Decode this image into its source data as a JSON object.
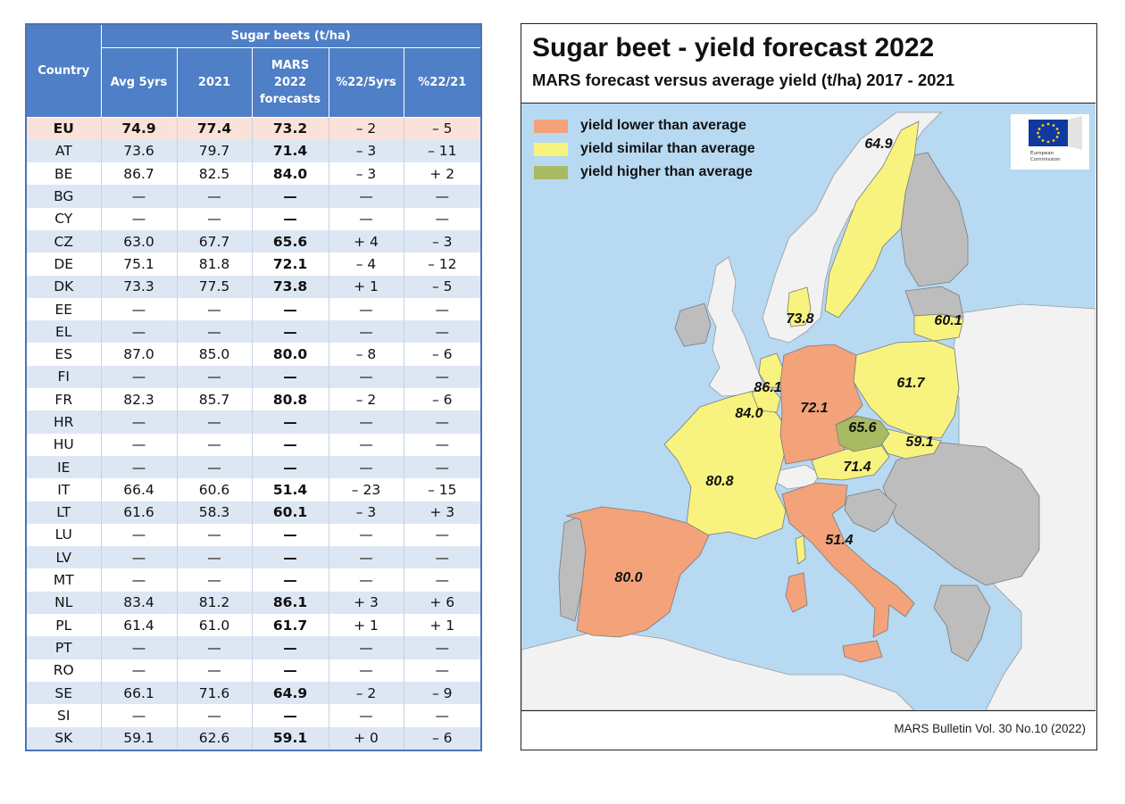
{
  "table": {
    "group_header": "Sugar beets (t/ha)",
    "col_country": "Country",
    "columns": [
      "Avg 5yrs",
      "2021",
      "MARS\n2022\nforecasts",
      "%22/5yrs",
      "%22/21"
    ],
    "rows": [
      {
        "code": "EU",
        "avg": "74.9",
        "y2021": "77.4",
        "fc": "73.2",
        "c5": "– 2",
        "c21": "– 5"
      },
      {
        "code": "AT",
        "avg": "73.6",
        "y2021": "79.7",
        "fc": "71.4",
        "c5": "– 3",
        "c21": "– 11"
      },
      {
        "code": "BE",
        "avg": "86.7",
        "y2021": "82.5",
        "fc": "84.0",
        "c5": "– 3",
        "c21": "+ 2"
      },
      {
        "code": "BG",
        "avg": "—",
        "y2021": "—",
        "fc": "—",
        "c5": "—",
        "c21": "—"
      },
      {
        "code": "CY",
        "avg": "—",
        "y2021": "—",
        "fc": "—",
        "c5": "—",
        "c21": "—"
      },
      {
        "code": "CZ",
        "avg": "63.0",
        "y2021": "67.7",
        "fc": "65.6",
        "c5": "+ 4",
        "c21": "– 3"
      },
      {
        "code": "DE",
        "avg": "75.1",
        "y2021": "81.8",
        "fc": "72.1",
        "c5": "– 4",
        "c21": "– 12"
      },
      {
        "code": "DK",
        "avg": "73.3",
        "y2021": "77.5",
        "fc": "73.8",
        "c5": "+ 1",
        "c21": "– 5"
      },
      {
        "code": "EE",
        "avg": "—",
        "y2021": "—",
        "fc": "—",
        "c5": "—",
        "c21": "—"
      },
      {
        "code": "EL",
        "avg": "—",
        "y2021": "—",
        "fc": "—",
        "c5": "—",
        "c21": "—"
      },
      {
        "code": "ES",
        "avg": "87.0",
        "y2021": "85.0",
        "fc": "80.0",
        "c5": "– 8",
        "c21": "– 6"
      },
      {
        "code": "FI",
        "avg": "—",
        "y2021": "—",
        "fc": "—",
        "c5": "—",
        "c21": "—"
      },
      {
        "code": "FR",
        "avg": "82.3",
        "y2021": "85.7",
        "fc": "80.8",
        "c5": "– 2",
        "c21": "– 6"
      },
      {
        "code": "HR",
        "avg": "—",
        "y2021": "—",
        "fc": "—",
        "c5": "—",
        "c21": "—"
      },
      {
        "code": "HU",
        "avg": "—",
        "y2021": "—",
        "fc": "—",
        "c5": "—",
        "c21": "—"
      },
      {
        "code": "IE",
        "avg": "—",
        "y2021": "—",
        "fc": "—",
        "c5": "—",
        "c21": "—"
      },
      {
        "code": "IT",
        "avg": "66.4",
        "y2021": "60.6",
        "fc": "51.4",
        "c5": "– 23",
        "c21": "– 15"
      },
      {
        "code": "LT",
        "avg": "61.6",
        "y2021": "58.3",
        "fc": "60.1",
        "c5": "– 3",
        "c21": "+ 3"
      },
      {
        "code": "LU",
        "avg": "—",
        "y2021": "—",
        "fc": "—",
        "c5": "—",
        "c21": "—"
      },
      {
        "code": "LV",
        "avg": "—",
        "y2021": "—",
        "fc": "—",
        "c5": "—",
        "c21": "—"
      },
      {
        "code": "MT",
        "avg": "—",
        "y2021": "—",
        "fc": "—",
        "c5": "—",
        "c21": "—"
      },
      {
        "code": "NL",
        "avg": "83.4",
        "y2021": "81.2",
        "fc": "86.1",
        "c5": "+ 3",
        "c21": "+ 6"
      },
      {
        "code": "PL",
        "avg": "61.4",
        "y2021": "61.0",
        "fc": "61.7",
        "c5": "+ 1",
        "c21": "+ 1"
      },
      {
        "code": "PT",
        "avg": "—",
        "y2021": "—",
        "fc": "—",
        "c5": "—",
        "c21": "—"
      },
      {
        "code": "RO",
        "avg": "—",
        "y2021": "—",
        "fc": "—",
        "c5": "—",
        "c21": "—"
      },
      {
        "code": "SE",
        "avg": "66.1",
        "y2021": "71.6",
        "fc": "64.9",
        "c5": "– 2",
        "c21": "– 9"
      },
      {
        "code": "SI",
        "avg": "—",
        "y2021": "—",
        "fc": "—",
        "c5": "—",
        "c21": "—"
      },
      {
        "code": "SK",
        "avg": "59.1",
        "y2021": "62.6",
        "fc": "59.1",
        "c5": "+ 0",
        "c21": "– 6"
      }
    ]
  },
  "map": {
    "title": "Sugar beet - yield forecast 2022",
    "subtitle": "MARS forecast versus average yield (t/ha) 2017 - 2021",
    "credit": "MARS Bulletin Vol. 30 No.10 (2022)",
    "logo_text": "European Commission",
    "legend": [
      {
        "label": "yield lower than average",
        "color": "#f4a27a"
      },
      {
        "label": "yield similar than average",
        "color": "#f8f37e"
      },
      {
        "label": "yield higher than average",
        "color": "#a9bb62"
      }
    ],
    "colors": {
      "sea": "#b7d9f2",
      "non_eu": "#f2f2f2",
      "no_data": "#bdbdbd",
      "border": "#7a7a7a"
    },
    "labels": [
      {
        "country": "SE",
        "value": "64.9"
      },
      {
        "country": "LT",
        "value": "60.1"
      },
      {
        "country": "DK",
        "value": "73.8"
      },
      {
        "country": "PL",
        "value": "61.7"
      },
      {
        "country": "NL",
        "value": "86.1"
      },
      {
        "country": "DE",
        "value": "72.1"
      },
      {
        "country": "BE",
        "value": "84.0"
      },
      {
        "country": "CZ",
        "value": "65.6"
      },
      {
        "country": "SK",
        "value": "59.1"
      },
      {
        "country": "AT",
        "value": "71.4"
      },
      {
        "country": "FR",
        "value": "80.8"
      },
      {
        "country": "IT",
        "value": "51.4"
      },
      {
        "country": "ES",
        "value": "80.0"
      }
    ]
  }
}
